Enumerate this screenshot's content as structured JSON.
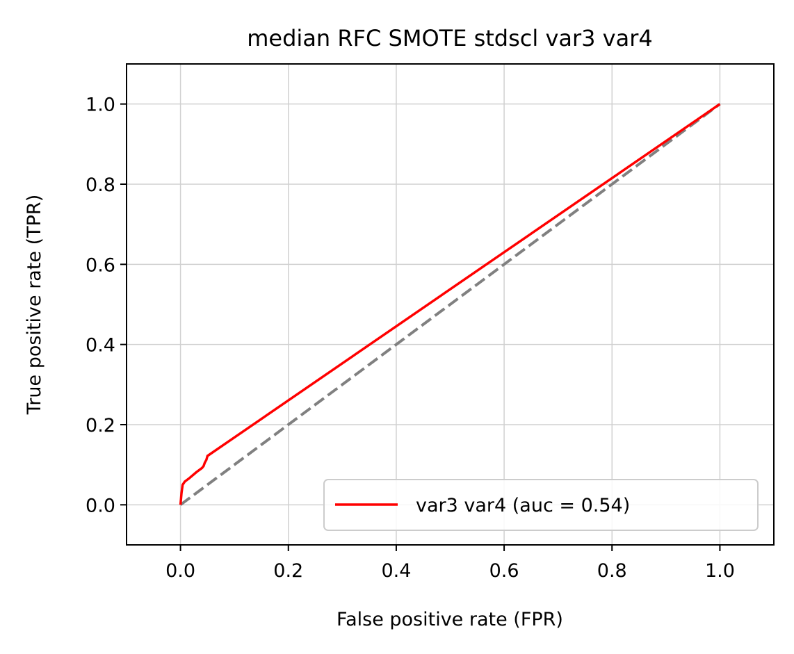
{
  "chart_data": {
    "type": "line",
    "title": "median RFC SMOTE stdscl var3 var4",
    "xlabel": "False positive rate (FPR)",
    "ylabel": "True positive rate (TPR)",
    "xlim": [
      -0.1,
      1.1
    ],
    "ylim": [
      -0.1,
      1.1
    ],
    "xticks": [
      "0.0",
      "0.2",
      "0.4",
      "0.6",
      "0.8",
      "1.0"
    ],
    "yticks": [
      "0.0",
      "0.2",
      "0.4",
      "0.6",
      "0.8",
      "1.0"
    ],
    "grid": true,
    "legend_position": "lower-right",
    "series": [
      {
        "name": "var3 var4 (auc = 0.54)",
        "color": "#ff0000",
        "style": "solid",
        "x": [
          0.0,
          0.002,
          0.004,
          0.008,
          0.015,
          0.03,
          0.04,
          0.043,
          0.045,
          0.048,
          0.05,
          1.0
        ],
        "y": [
          0.0,
          0.03,
          0.05,
          0.058,
          0.065,
          0.082,
          0.092,
          0.097,
          0.105,
          0.112,
          0.122,
          1.0
        ]
      },
      {
        "name": "",
        "color": "#808080",
        "style": "dashed",
        "x": [
          0.0,
          1.0
        ],
        "y": [
          0.0,
          1.0
        ]
      }
    ]
  }
}
